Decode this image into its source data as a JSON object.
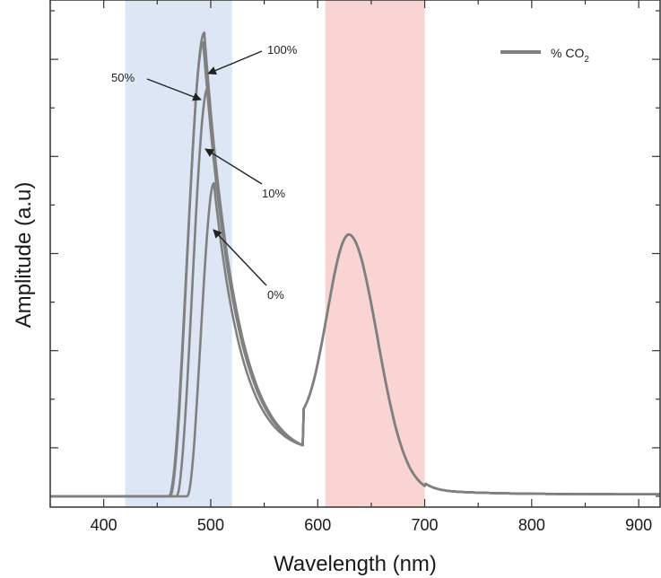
{
  "chart_data": {
    "type": "line",
    "title": "",
    "xlabel": "Wavelength (nm)",
    "ylabel": "Amplitude (a.u)",
    "xlim": [
      350,
      920
    ],
    "ylim": [
      0,
      1.0
    ],
    "x_ticks": [
      400,
      500,
      600,
      700,
      800,
      900
    ],
    "y_tick_labels_shown": false,
    "grid": false,
    "legend": {
      "position": "top-right",
      "label": "% CO",
      "subscript": "2"
    },
    "shaded_regions": [
      {
        "x_range": [
          420,
          520
        ],
        "color": "#dde6f4"
      },
      {
        "x_range": [
          607,
          700
        ],
        "color": "#fad3d3"
      }
    ],
    "series_color": "#808080",
    "series": [
      {
        "label": "0%",
        "peak_x": 503,
        "peak_y": 0.645,
        "onset": 478
      },
      {
        "label": "10%",
        "peak_x": 497,
        "peak_y": 0.84,
        "onset": 468
      },
      {
        "label": "50%",
        "peak_x": 493,
        "peak_y": 0.935,
        "onset": 462
      },
      {
        "label": "100%",
        "peak_x": 494,
        "peak_y": 0.955,
        "onset": 461
      }
    ],
    "shared_features": {
      "baseline": 0.0,
      "valley": {
        "x": 586,
        "y": 0.105
      },
      "second_peak": {
        "x": 630,
        "y": 0.505
      }
    },
    "annotations": [
      {
        "text": "100%"
      },
      {
        "text": "50%"
      },
      {
        "text": "10%"
      },
      {
        "text": "0%"
      }
    ]
  }
}
